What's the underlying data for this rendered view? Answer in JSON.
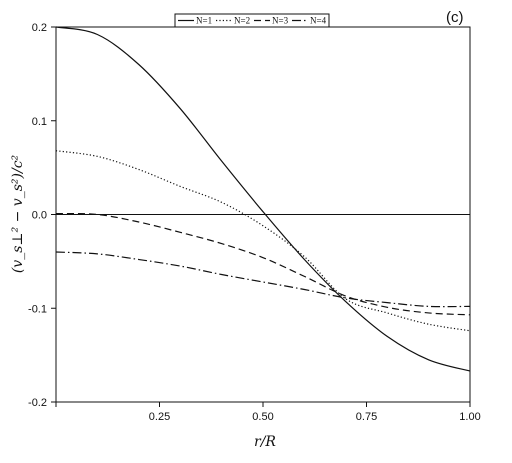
{
  "chart_data": {
    "type": "line",
    "panel_label": "(c)",
    "xlabel": "r/R",
    "ylabel": "(v_s⊥² − v_s²)/c²",
    "xlim": [
      0.0,
      1.0
    ],
    "ylim": [
      -0.2,
      0.2
    ],
    "x_ticks": [
      0.25,
      0.5,
      0.75,
      1.0
    ],
    "x_tick_labels": [
      "0.25",
      "0.50",
      "0.75",
      "1.00"
    ],
    "y_ticks": [
      0.2,
      0.1,
      0.0,
      -0.1,
      -0.2
    ],
    "y_tick_labels": [
      "0.2",
      "0.1",
      "0.0",
      "-0.1",
      "-0.2"
    ],
    "zero_line": 0.0,
    "legend_position": "top",
    "x": [
      0.0,
      0.1,
      0.2,
      0.3,
      0.4,
      0.5,
      0.6,
      0.7,
      0.8,
      0.9,
      1.0
    ],
    "series": [
      {
        "name": "N=1",
        "dash": "solid",
        "values": [
          0.2,
          0.192,
          0.16,
          0.113,
          0.057,
          0.003,
          -0.048,
          -0.093,
          -0.13,
          -0.155,
          -0.167
        ]
      },
      {
        "name": "N=2",
        "dash": "dotted",
        "values": [
          0.068,
          0.062,
          0.048,
          0.03,
          0.013,
          -0.012,
          -0.045,
          -0.09,
          -0.105,
          -0.117,
          -0.124
        ]
      },
      {
        "name": "N=3",
        "dash": "dashed",
        "values": [
          0.001,
          0.0,
          -0.008,
          -0.019,
          -0.031,
          -0.046,
          -0.066,
          -0.087,
          -0.099,
          -0.105,
          -0.107
        ]
      },
      {
        "name": "N=4",
        "dash": "dashdot",
        "values": [
          -0.04,
          -0.042,
          -0.048,
          -0.055,
          -0.064,
          -0.072,
          -0.08,
          -0.089,
          -0.094,
          -0.098,
          -0.098
        ]
      }
    ]
  }
}
